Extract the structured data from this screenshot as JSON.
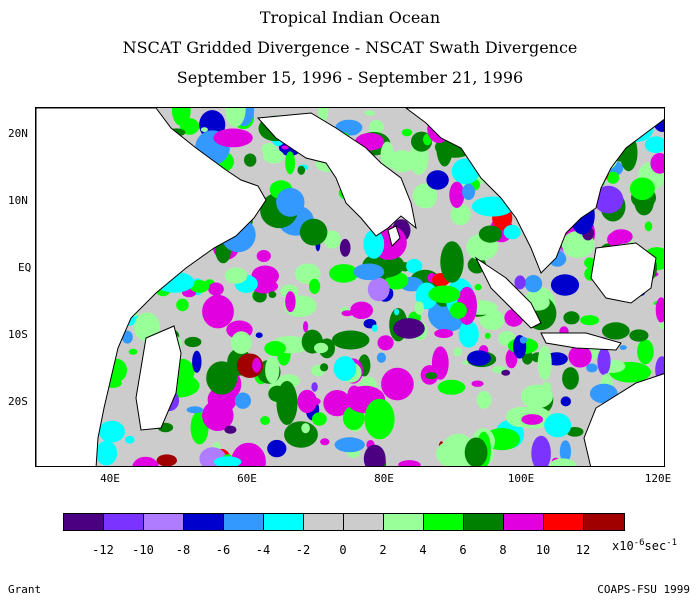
{
  "titles": {
    "line1": "Tropical Indian Ocean",
    "line2": "NSCAT Gridded Divergence - NSCAT Swath Divergence",
    "line3": "September 15, 1996 - September 21, 1996"
  },
  "map": {
    "lat_labels": [
      "20N",
      "10N",
      "EQ",
      "10S",
      "20S"
    ],
    "lon_labels": [
      "40E",
      "60E",
      "80E",
      "100E",
      "120E"
    ],
    "land_color": "#ffffff",
    "coast_color": "#000000"
  },
  "colorbar": {
    "colors": [
      "#4b0082",
      "#7b33ff",
      "#b07cff",
      "#0000cc",
      "#3399ff",
      "#00ffff",
      "#cccccc",
      "#cccccc",
      "#99ff99",
      "#00ff00",
      "#008000",
      "#e000e0",
      "#ff0000",
      "#a00000"
    ],
    "tick_labels": [
      "-12",
      "-10",
      "-8",
      "-6",
      "-4",
      "-2",
      "0",
      "2",
      "4",
      "6",
      "8",
      "10",
      "12"
    ],
    "units_prefix": "x10",
    "units_exponent": "-6",
    "units_suffix": "sec",
    "units_suffix_exponent": "-1"
  },
  "footer": {
    "author": "Grant",
    "credit": "COAPS-FSU 1999"
  }
}
